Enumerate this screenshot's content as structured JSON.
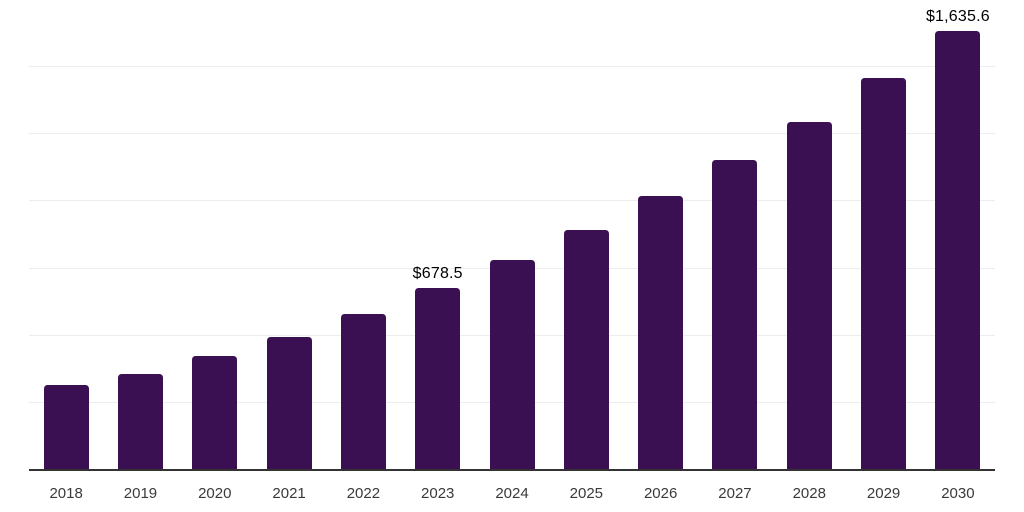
{
  "chart": {
    "background": "#ffffff"
  },
  "chart_data": {
    "type": "bar",
    "title": "",
    "xlabel": "",
    "ylabel": "",
    "categories": [
      "2018",
      "2019",
      "2020",
      "2021",
      "2022",
      "2023",
      "2024",
      "2025",
      "2026",
      "2027",
      "2028",
      "2029",
      "2030"
    ],
    "values": [
      315,
      358,
      424,
      494,
      580,
      678.5,
      781,
      894,
      1021,
      1156,
      1297,
      1460,
      1635.6
    ],
    "data_labels": [
      "",
      "",
      "",
      "",
      "",
      "$678.5",
      "",
      "",
      "",
      "",
      "",
      "",
      "$1,635.6"
    ],
    "ylim": [
      0,
      1750
    ],
    "y_gridline_step": 250,
    "grid": "horizontal-only",
    "y_axis_tick_labels_visible": false,
    "legend": "none",
    "colors": {
      "bar": "#3A1052",
      "axis_line": "#333333",
      "gridline": "#ededed",
      "data_label": "#000000",
      "tick_label": "#3a3a3a"
    }
  }
}
